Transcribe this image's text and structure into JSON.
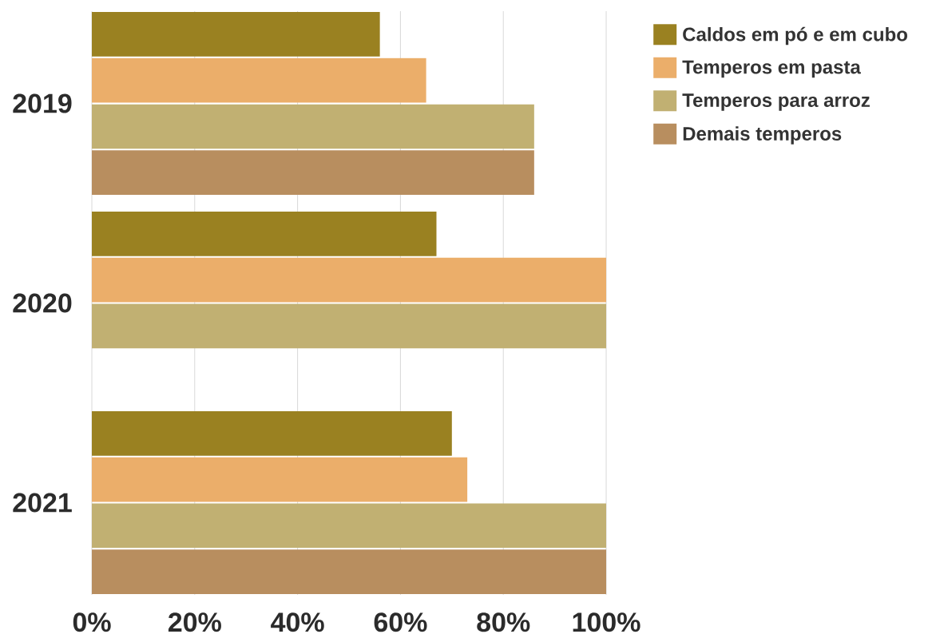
{
  "chart_data": {
    "type": "bar",
    "orientation": "horizontal",
    "categories": [
      "2019",
      "2020",
      "2021"
    ],
    "series": [
      {
        "name": "Caldos em pó e em cubo",
        "color": "#9a8121",
        "values": [
          56,
          67,
          70
        ]
      },
      {
        "name": "Temperos em pasta",
        "color": "#ebae6a",
        "values": [
          65,
          100,
          73
        ]
      },
      {
        "name": "Temperos para arroz",
        "color": "#c1b072",
        "values": [
          86,
          100,
          100
        ]
      },
      {
        "name": "Demais temperos",
        "color": "#b88e5f",
        "values": [
          86,
          null,
          100
        ]
      }
    ],
    "xlim": [
      0,
      100
    ],
    "xticks": [
      {
        "value": 0,
        "label": "0%"
      },
      {
        "value": 20,
        "label": "20%"
      },
      {
        "value": 40,
        "label": "40%"
      },
      {
        "value": 60,
        "label": "60%"
      },
      {
        "value": 80,
        "label": "80%"
      },
      {
        "value": 100,
        "label": "100%"
      }
    ],
    "grid": "x",
    "legend": "top right"
  }
}
